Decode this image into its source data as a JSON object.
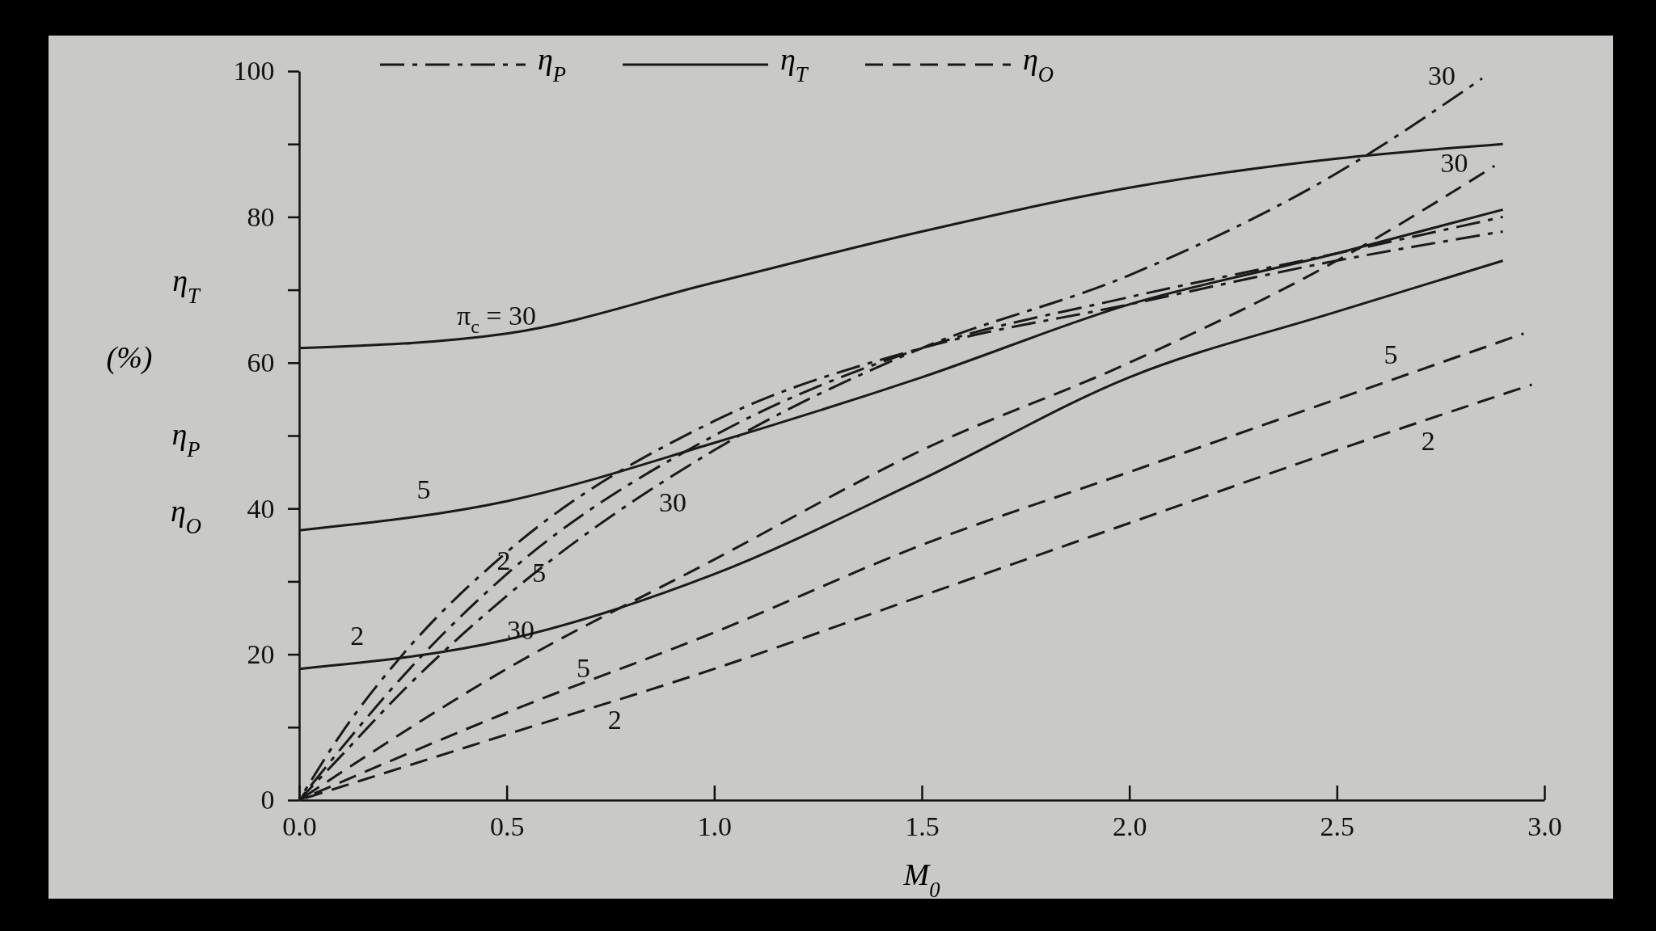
{
  "chart_data": {
    "type": "line",
    "xlabel": "M$_{0}$",
    "ylabel": "η$_{T}$ (%) η$_{P}$ η$_{O}$",
    "xlim": [
      0,
      3
    ],
    "ylim": [
      0,
      100
    ],
    "xticks": [
      {
        "value": 0,
        "label": "0.0"
      },
      {
        "value": 0.5,
        "label": "0.5"
      },
      {
        "value": 1,
        "label": "1.0"
      },
      {
        "value": 1.5,
        "label": "1.5"
      },
      {
        "value": 2,
        "label": "2.0"
      },
      {
        "value": 2.5,
        "label": "2.5"
      },
      {
        "value": 3,
        "label": "3.0"
      }
    ],
    "yticks": [
      0,
      {
        "value": 10,
        "label": null
      },
      20,
      {
        "value": 30,
        "label": null
      },
      40,
      {
        "value": 50,
        "label": null
      },
      60,
      {
        "value": 70,
        "label": null
      },
      80,
      {
        "value": 90,
        "label": null
      },
      100
    ],
    "legend": "top",
    "grid": false,
    "series": [
      {
        "name": "η$_{P}$",
        "color": "#1a1a1a",
        "line_style": "dashdot",
        "x": [
          0,
          0.1,
          0.25,
          0.5,
          1,
          1.5,
          2,
          2.5,
          2.9
        ],
        "values": [
          0,
          9,
          20,
          34,
          52,
          62,
          68,
          74,
          78
        ]
      },
      {
        "name": "η$_{T}$",
        "color": "#1a1a1a",
        "line_style": "solid",
        "x": [
          0,
          0.5,
          1,
          1.5,
          2,
          2.5,
          2.9
        ],
        "values": [
          62,
          64,
          71,
          78,
          84,
          88,
          90
        ]
      },
      {
        "name": "η$_{O}$",
        "color": "#1a1a1a",
        "line_style": "dashed",
        "x": [
          0,
          0.5,
          1,
          1.5,
          2,
          2.5,
          2.88
        ],
        "values": [
          0,
          18,
          33,
          48,
          60,
          74,
          87
        ]
      },
      {
        "color": "#1a1a1a",
        "line_style": "dashdot",
        "x": [
          0,
          0.1,
          0.25,
          0.5,
          1,
          1.5,
          2,
          2.5,
          2.9
        ],
        "values": [
          0,
          7,
          17,
          31,
          50,
          62,
          69,
          75,
          80
        ]
      },
      {
        "color": "#1a1a1a",
        "line_style": "dashdot",
        "x": [
          0,
          0.1,
          0.25,
          0.5,
          1,
          1.5,
          2,
          2.5,
          2.85
        ],
        "values": [
          0,
          6,
          15,
          28,
          48,
          62,
          72,
          86,
          99
        ]
      },
      {
        "color": "#1a1a1a",
        "line_style": "solid",
        "x": [
          0,
          0.5,
          1,
          1.5,
          2,
          2.5,
          2.9
        ],
        "values": [
          37,
          41,
          49,
          58,
          68,
          75,
          81
        ]
      },
      {
        "color": "#1a1a1a",
        "line_style": "solid",
        "x": [
          0,
          0.5,
          1,
          1.5,
          2,
          2.5,
          2.9
        ],
        "values": [
          18,
          22,
          31,
          44,
          58,
          67,
          74
        ]
      },
      {
        "color": "#1a1a1a",
        "line_style": "dashed",
        "x": [
          0,
          0.5,
          1,
          1.5,
          2,
          2.5,
          2.95
        ],
        "values": [
          0,
          12,
          23,
          35,
          45,
          55,
          64
        ]
      },
      {
        "color": "#1a1a1a",
        "line_style": "dashed",
        "x": [
          0,
          0.5,
          1,
          1.5,
          2,
          2.5,
          2.97
        ],
        "values": [
          0,
          9,
          18,
          28,
          38,
          48,
          57
        ]
      }
    ],
    "annotations": [
      {
        "text": "π$_{c}$ = 30",
        "x": 0.3,
        "y": 63
      },
      {
        "text": "5",
        "x": 0.3,
        "y": 39.4
      },
      {
        "text": "2",
        "x": 0.14,
        "y": 19.1
      },
      {
        "text": "2",
        "x": 0.45,
        "y": 31.2
      },
      {
        "text": "5",
        "x": 0.5,
        "y": 31
      },
      {
        "text": "30",
        "x": 0.9,
        "y": 44
      },
      {
        "text": "30",
        "x": 0.6,
        "y": 21
      },
      {
        "text": "5",
        "x": 0.72,
        "y": 16.8
      },
      {
        "text": "2",
        "x": 0.76,
        "y": 13.7
      },
      {
        "text": "30",
        "x": 2.85,
        "y": 99
      },
      {
        "text": "30",
        "x": 2.88,
        "y": 87
      },
      {
        "text": "5",
        "x": 2.63,
        "y": 57.6
      },
      {
        "text": "2",
        "x": 2.72,
        "y": 52.2
      }
    ]
  }
}
